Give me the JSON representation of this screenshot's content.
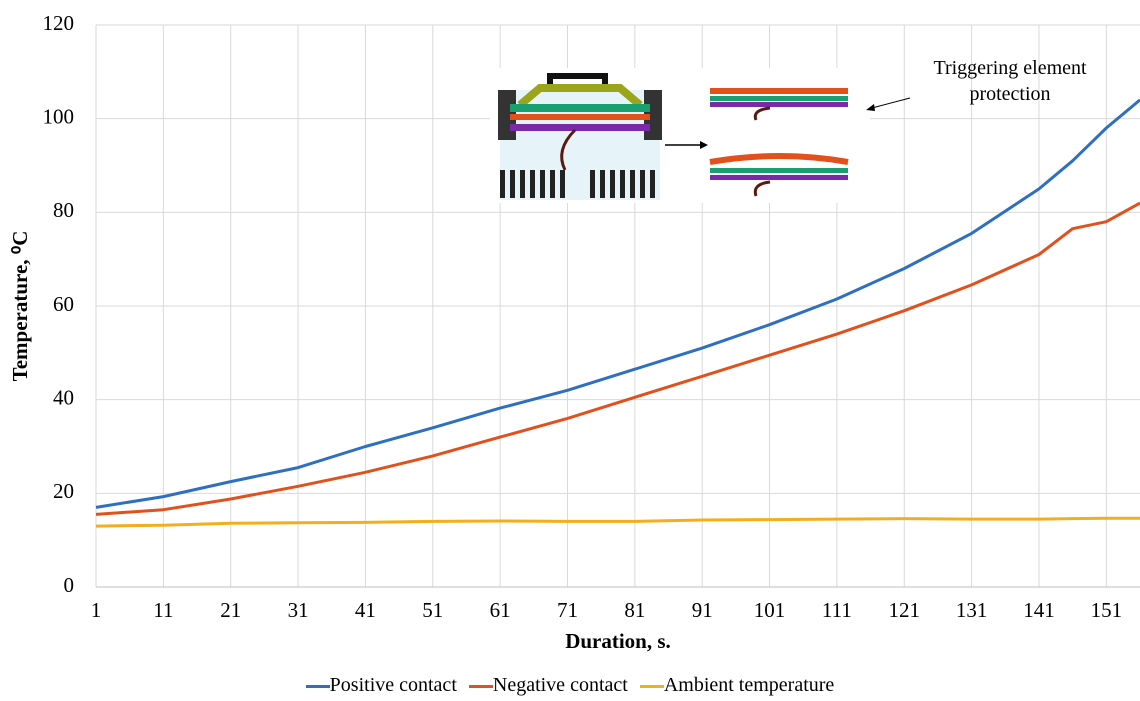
{
  "chart_data": {
    "type": "line",
    "x_label": "Duration, s.",
    "y_label": "Temperature, ⁰C",
    "annotation": "Triggering element protection",
    "x": [
      1,
      11,
      21,
      31,
      41,
      51,
      61,
      71,
      81,
      91,
      101,
      111,
      121,
      131,
      141,
      146,
      151,
      156
    ],
    "series": [
      {
        "name": "Positive contact",
        "color": "#2e6fc0",
        "values": [
          17,
          19.3,
          22.5,
          25.5,
          30,
          34,
          38.2,
          42,
          46.5,
          51,
          56,
          61.5,
          68,
          75.5,
          85,
          91,
          98,
          104
        ]
      },
      {
        "name": "Negative contact",
        "color": "#e2501c",
        "values": [
          15.5,
          16.5,
          18.8,
          21.5,
          24.5,
          28,
          32,
          36,
          40.5,
          45,
          49.5,
          54,
          59,
          64.5,
          71,
          76.5,
          78,
          82
        ]
      },
      {
        "name": "Ambient temperature",
        "color": "#f4ae1c",
        "values": [
          13,
          13.2,
          13.6,
          13.7,
          13.8,
          14,
          14.1,
          14,
          14,
          14.3,
          14.4,
          14.5,
          14.6,
          14.5,
          14.5,
          14.6,
          14.7,
          14.7
        ]
      }
    ],
    "xlim": [
      1,
      156
    ],
    "ylim": [
      0,
      120
    ],
    "xticks": [
      1,
      11,
      21,
      31,
      41,
      51,
      61,
      71,
      81,
      91,
      101,
      111,
      121,
      131,
      141,
      151
    ],
    "yticks": [
      0,
      20,
      40,
      60,
      80,
      100,
      120
    ],
    "grid": true
  }
}
